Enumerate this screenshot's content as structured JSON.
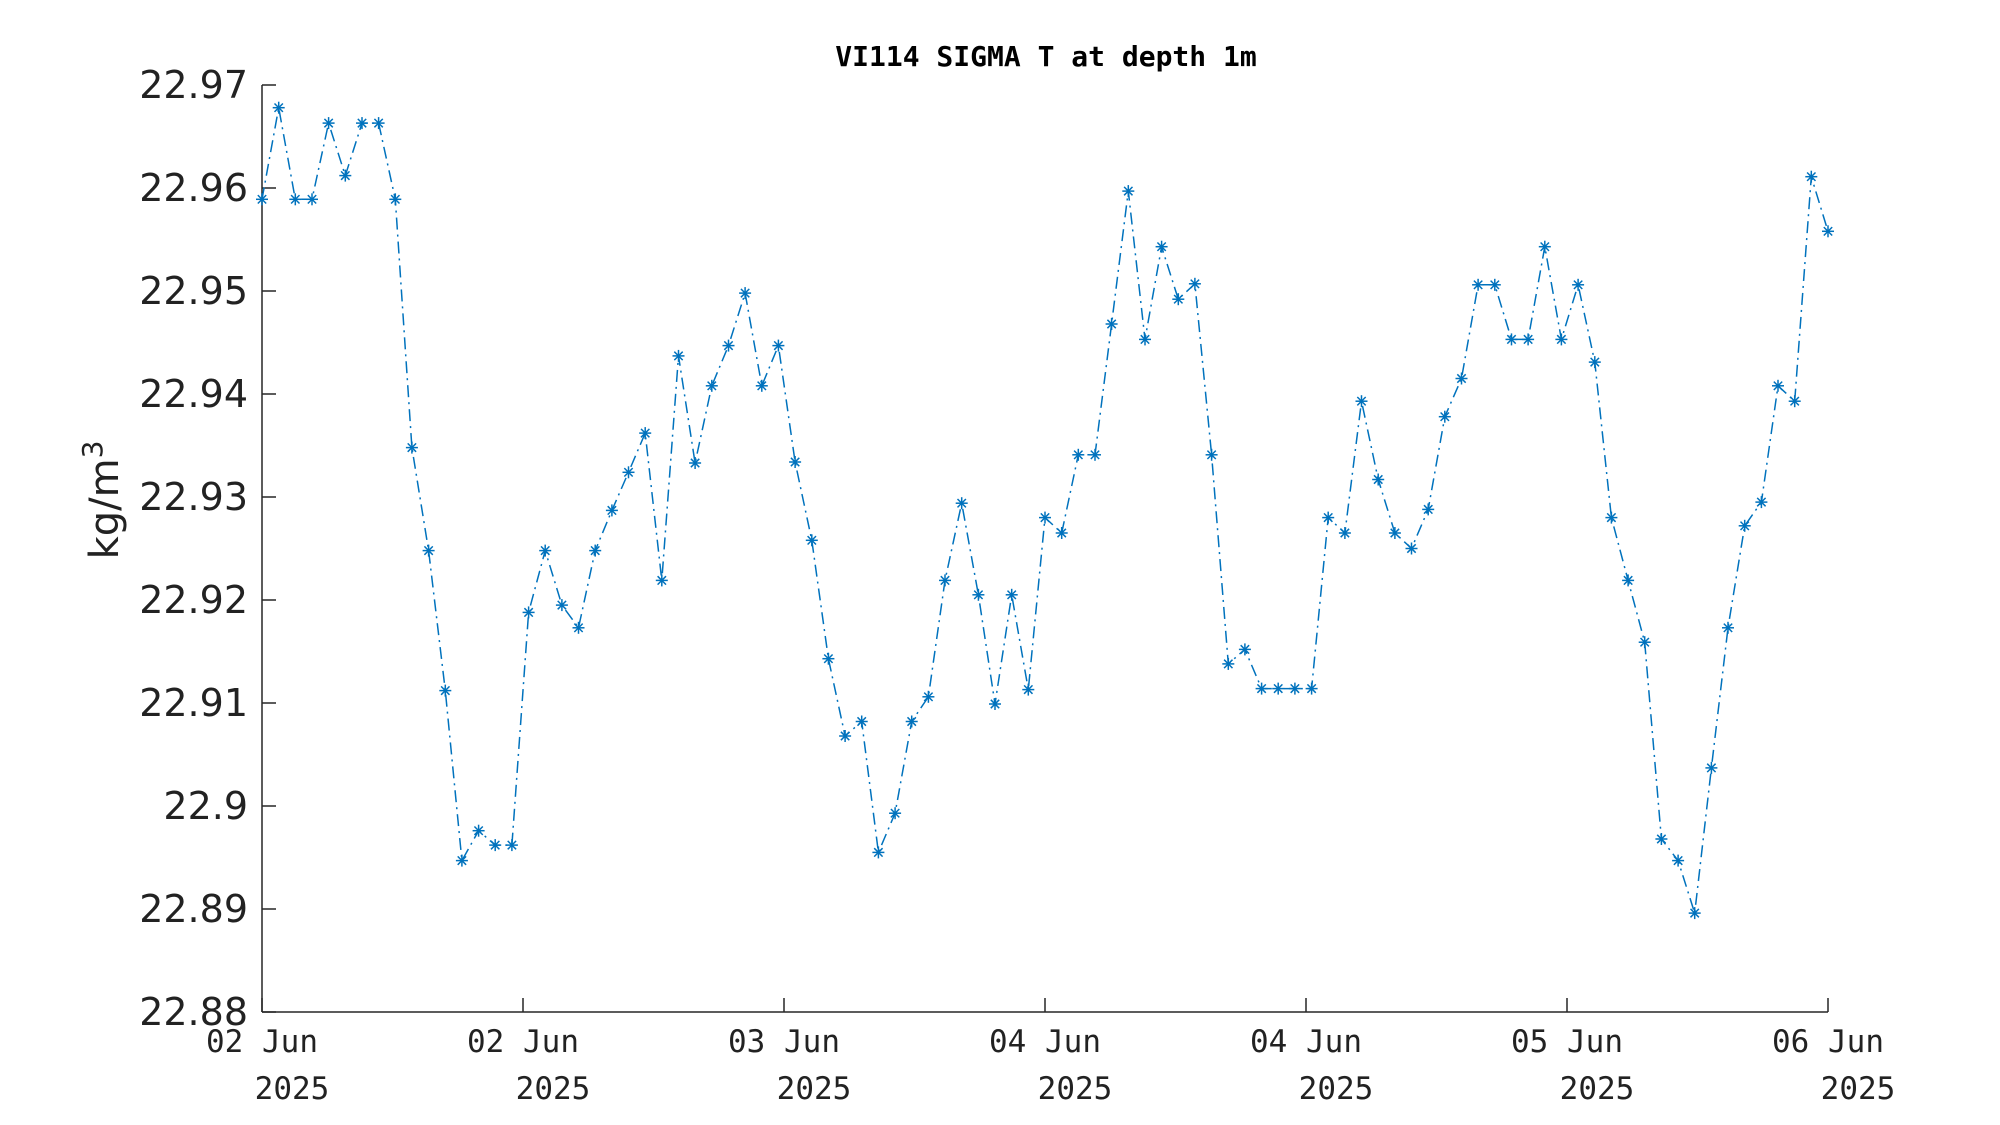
{
  "chart_data": {
    "type": "line",
    "title": "VI114 SIGMA T at depth 1m",
    "ylabel_base": "kg/m",
    "ylabel_sup": "3",
    "ylim": [
      22.88,
      22.97
    ],
    "y_ticks": [
      "22.88",
      "22.89",
      "22.9",
      "22.91",
      "22.92",
      "22.93",
      "22.94",
      "22.95",
      "22.96",
      "22.97"
    ],
    "x_range_hours": [
      0,
      96
    ],
    "x_ticks": [
      {
        "date": "02 Jun",
        "year": "2025",
        "hour": 0
      },
      {
        "date": "02 Jun",
        "year": "2025",
        "hour": 16
      },
      {
        "date": "03 Jun",
        "year": "2025",
        "hour": 32
      },
      {
        "date": "04 Jun",
        "year": "2025",
        "hour": 48
      },
      {
        "date": "04 Jun",
        "year": "2025",
        "hour": 64
      },
      {
        "date": "05 Jun",
        "year": "2025",
        "hour": 80
      },
      {
        "date": "06 Jun",
        "year": "2025",
        "hour": 96
      }
    ],
    "grid": false,
    "line_style": "dash-dot",
    "marker": "asterisk",
    "series_color": "#0072BD",
    "series": [
      {
        "values": [
          22.9589,
          22.9678,
          22.9589,
          22.9589,
          22.9663,
          22.9612,
          22.9663,
          22.9663,
          22.9589,
          22.9348,
          22.9248,
          22.9112,
          22.8947,
          22.8976,
          22.8962,
          22.8962,
          22.9188,
          22.9248,
          22.9195,
          22.9173,
          22.9248,
          22.9287,
          22.9324,
          22.9362,
          22.9219,
          22.9437,
          22.9333,
          22.9408,
          22.9447,
          22.9498,
          22.9408,
          22.9447,
          22.9334,
          22.9258,
          22.9143,
          22.9068,
          22.9082,
          22.8955,
          22.8993,
          22.9082,
          22.9106,
          22.9219,
          22.9294,
          22.9205,
          22.9099,
          22.9205,
          22.9113,
          22.928,
          22.9265,
          22.9341,
          22.9341,
          22.9468,
          22.9597,
          22.9453,
          22.9543,
          22.9492,
          22.9507,
          22.9341,
          22.9138,
          22.9152,
          22.9114,
          22.9114,
          22.9114,
          22.9114,
          22.928,
          22.9265,
          22.9393,
          22.9317,
          22.9265,
          22.925,
          22.9288,
          22.9378,
          22.9415,
          22.9506,
          22.9506,
          22.9453,
          22.9453,
          22.9543,
          22.9453,
          22.9506,
          22.9431,
          22.928,
          22.9219,
          22.9159,
          22.8968,
          22.8947,
          22.8896,
          22.9037,
          22.9173,
          22.9272,
          22.9295,
          22.9408,
          22.9393,
          22.9611,
          22.9558
        ]
      }
    ]
  }
}
